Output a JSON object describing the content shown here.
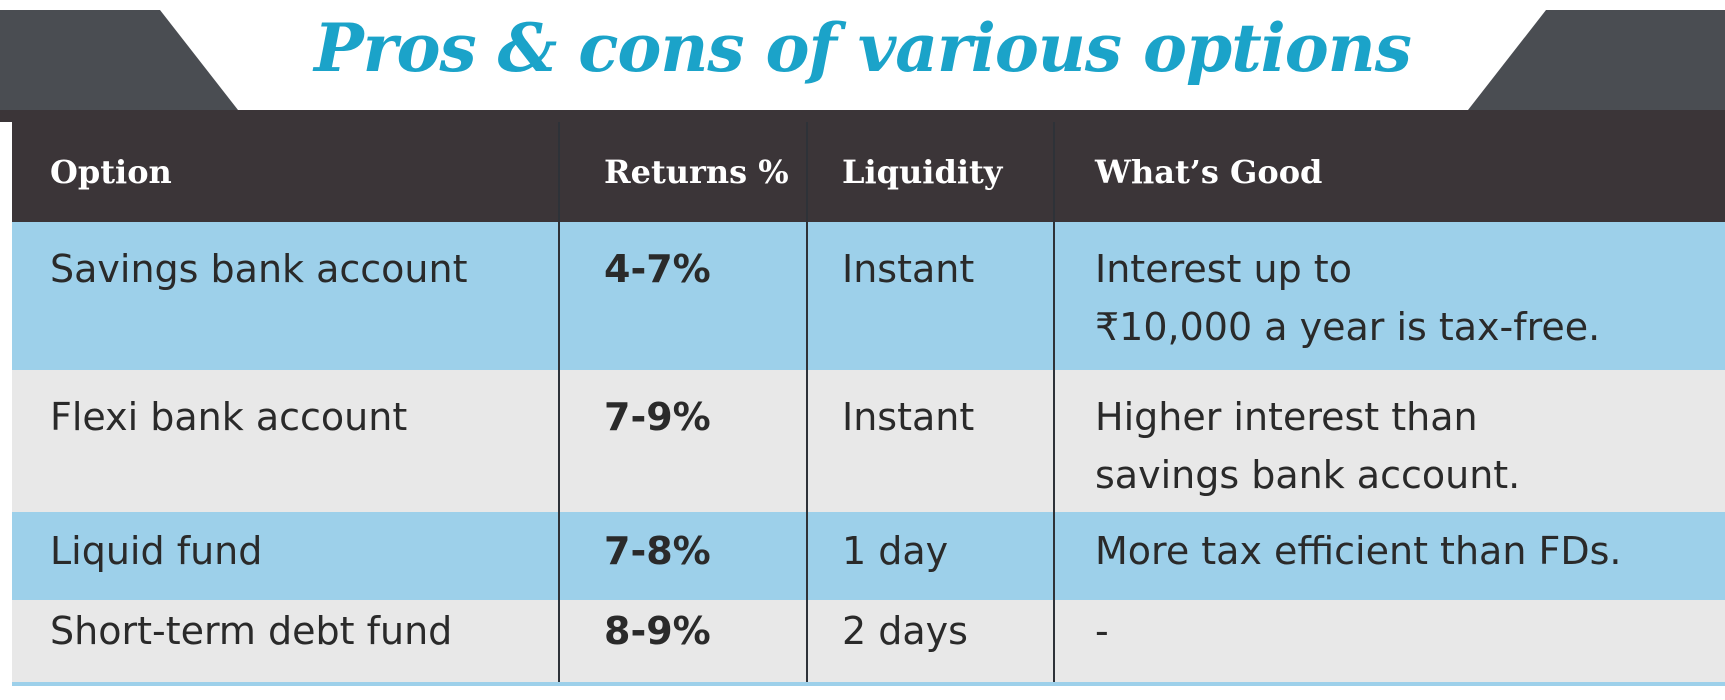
{
  "title": "Pros & cons of various options",
  "colors": {
    "title": "#1ba3c9",
    "header_bg": "#3b3538",
    "banner_dark": "#4a4d52",
    "row_blue": "#9dd0ea",
    "row_grey": "#e8e8e8",
    "divider": "#2e3238"
  },
  "chart_data": {
    "type": "table",
    "title": "Pros & cons of various options",
    "columns": [
      "Option",
      "Returns %",
      "Liquidity",
      "What’s Good"
    ],
    "rows": [
      {
        "option": "Savings bank account",
        "returns": "4-7%",
        "liquidity": "Instant",
        "good_line1": "Interest up to",
        "good_line2": "₹10,000 a year is tax-free."
      },
      {
        "option": "Flexi bank account",
        "returns": "7-9%",
        "liquidity": "Instant",
        "good_line1": "Higher interest than",
        "good_line2": "savings bank account."
      },
      {
        "option": "Liquid fund",
        "returns": "7-8%",
        "liquidity": "1 day",
        "good_line1": "More tax efficient than FDs.",
        "good_line2": ""
      },
      {
        "option": "Short-term debt fund",
        "returns": "8-9%",
        "liquidity": "2 days",
        "good_line1": "-",
        "good_line2": ""
      }
    ]
  }
}
